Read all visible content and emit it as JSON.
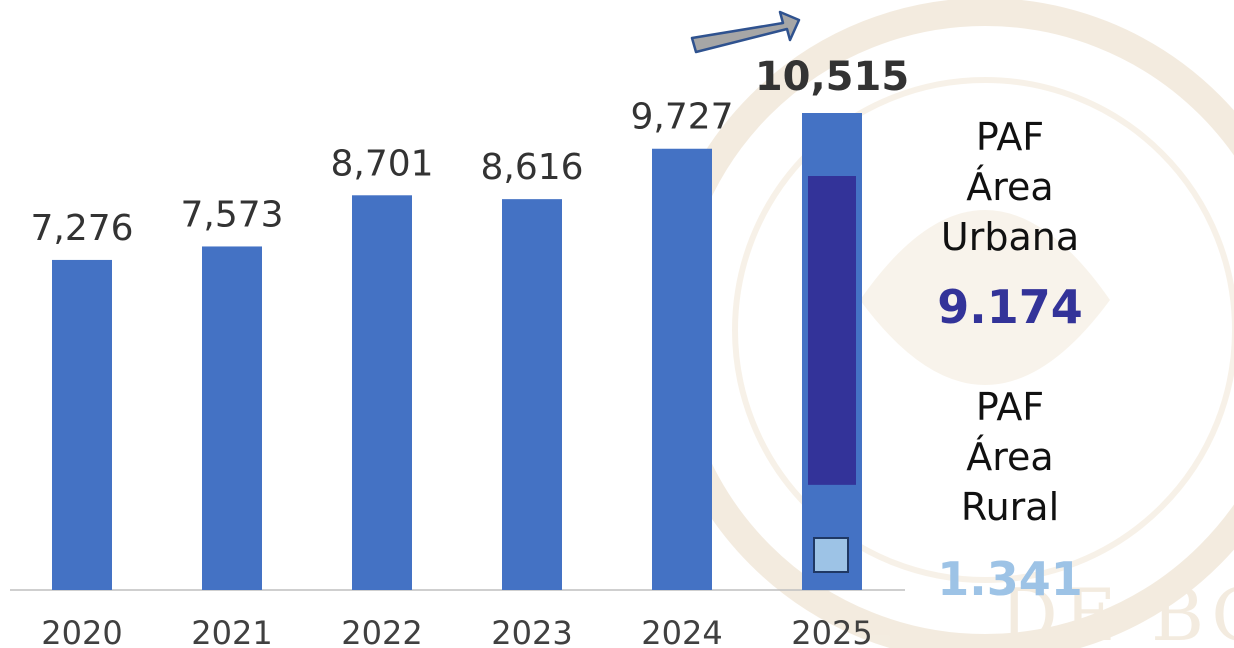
{
  "chart_data": {
    "type": "bar",
    "categories": [
      "2020",
      "2021",
      "2022",
      "2023",
      "2024",
      "2025"
    ],
    "values": [
      7276,
      7573,
      8701,
      8616,
      9727,
      10515
    ],
    "value_labels": [
      "7,276",
      "7,573",
      "8,701",
      "8,616",
      "9,727",
      "10,515"
    ],
    "ylim": [
      0,
      10515
    ],
    "grid": false,
    "bar_color": "#4472C4",
    "highlight": {
      "category": "2025",
      "value_label_style": "bold",
      "segments": [
        {
          "name": "PAF Área Urbana",
          "value": 9174,
          "color": "#333399"
        },
        {
          "name": "PAF Área Rural",
          "value": 1341,
          "color": "#9DC3E6"
        }
      ]
    },
    "trend_arrow": true
  },
  "side_panel": {
    "urban": {
      "lines": [
        "PAF",
        "Área",
        "Urbana"
      ],
      "value": "9.174",
      "color": "#333399"
    },
    "rural": {
      "lines": [
        "PAF",
        "Área",
        "Rural"
      ],
      "value": "1.341",
      "color": "#9DC3E6"
    }
  },
  "watermark": {
    "text": "DE BOLIVIA",
    "color": "#E9DCC4"
  }
}
